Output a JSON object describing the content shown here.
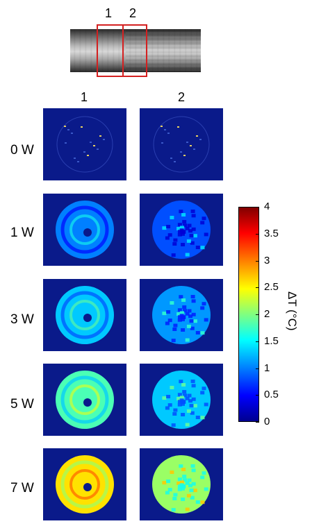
{
  "top": {
    "label_1": "1",
    "label_2": "2"
  },
  "columns": [
    "1",
    "2"
  ],
  "rows": [
    "0 W",
    "1 W",
    "3 W",
    "5 W",
    "7 W"
  ],
  "colorbar": {
    "title": "ΔT (°C)",
    "ticks": [
      "4",
      "3.5",
      "3",
      "2.5",
      "2",
      "1.5",
      "1",
      "0.5",
      "0"
    ],
    "range": [
      0,
      4
    ],
    "colors": [
      "#00008f",
      "#0000ff",
      "#00ffff",
      "#ffff00",
      "#ff0000",
      "#800000"
    ]
  },
  "tile_levels": [
    [
      0.0,
      0.0
    ],
    [
      1.0,
      0.8
    ],
    [
      1.3,
      1.1
    ],
    [
      1.8,
      1.3
    ],
    [
      2.6,
      2.1
    ]
  ],
  "colors": {
    "background": "#0a1a8a",
    "roi_box": "#d42020"
  }
}
